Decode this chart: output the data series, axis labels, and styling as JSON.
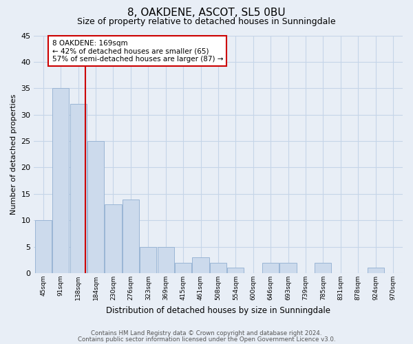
{
  "title": "8, OAKDENE, ASCOT, SL5 0BU",
  "subtitle": "Size of property relative to detached houses in Sunningdale",
  "xlabel": "Distribution of detached houses by size in Sunningdale",
  "ylabel": "Number of detached properties",
  "bar_labels": [
    "45sqm",
    "91sqm",
    "138sqm",
    "184sqm",
    "230sqm",
    "276sqm",
    "323sqm",
    "369sqm",
    "415sqm",
    "461sqm",
    "508sqm",
    "554sqm",
    "600sqm",
    "646sqm",
    "693sqm",
    "739sqm",
    "785sqm",
    "831sqm",
    "878sqm",
    "924sqm",
    "970sqm"
  ],
  "bar_values": [
    10,
    35,
    32,
    25,
    13,
    14,
    5,
    5,
    2,
    3,
    2,
    1,
    0,
    2,
    2,
    0,
    2,
    0,
    0,
    1,
    0
  ],
  "bar_color": "#ccdaec",
  "bar_edge_color": "#9ab5d5",
  "grid_color": "#c5d5e8",
  "background_color": "#e8eef6",
  "red_line_x": 2.42,
  "annotation_text": "8 OAKDENE: 169sqm\n← 42% of detached houses are smaller (65)\n57% of semi-detached houses are larger (87) →",
  "annotation_box_color": "#ffffff",
  "annotation_box_edge": "#cc0000",
  "ylim": [
    0,
    45
  ],
  "yticks": [
    0,
    5,
    10,
    15,
    20,
    25,
    30,
    35,
    40,
    45
  ],
  "footer_line1": "Contains HM Land Registry data © Crown copyright and database right 2024.",
  "footer_line2": "Contains public sector information licensed under the Open Government Licence v3.0.",
  "title_fontsize": 11,
  "subtitle_fontsize": 9
}
